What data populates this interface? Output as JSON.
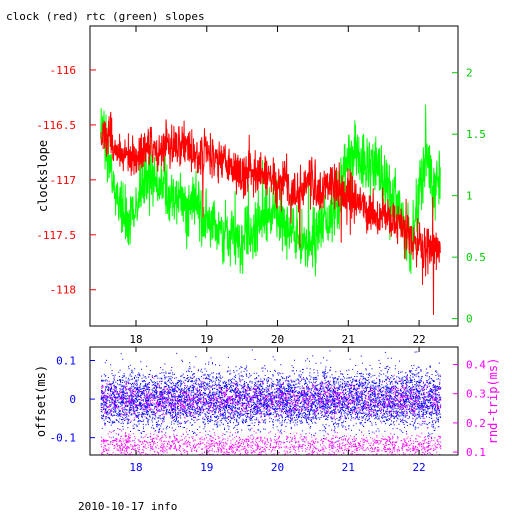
{
  "title": "clock (red) rtc (green) slopes",
  "footer": "2010-10-17 info",
  "colors": {
    "clock": "#ff0000",
    "rtc": "#00ff00",
    "offset": "#0000ff",
    "rtt": "#ff00ff",
    "top_left_axis": "#ff0000",
    "top_right_axis": "#00cc00",
    "bottom_left_axis": "#0000ff",
    "bottom_right_axis": "#ff00ff",
    "frame": "#000000"
  },
  "chart_data": [
    {
      "type": "line",
      "panel": "top",
      "title": "clock (red) rtc (green) slopes",
      "ylabel": "clockslope",
      "xlim": [
        17.35,
        22.55
      ],
      "ylim": [
        -118.33,
        -115.6
      ],
      "y2lim": [
        -0.06,
        2.38
      ],
      "x_ticks": [
        "18",
        "19",
        "20",
        "21",
        "22"
      ],
      "x_tick_values": [
        18,
        19,
        20,
        21,
        22
      ],
      "y_ticks": [
        "-116",
        "-116.5",
        "-117",
        "-117.5",
        "-118"
      ],
      "y_tick_values": [
        -116,
        -116.5,
        -117,
        -117.5,
        -118
      ],
      "y2_ticks": [
        "2",
        "1.5",
        "1",
        "0.5",
        "0"
      ],
      "y2_tick_values": [
        2,
        1.5,
        1,
        0.5,
        0
      ],
      "grid": false,
      "series": [
        {
          "name": "clock",
          "axis": "left",
          "color": "#ff0000",
          "x": [
            17.5,
            17.6,
            17.7,
            17.8,
            17.9,
            18.0,
            18.1,
            18.2,
            18.3,
            18.4,
            18.5,
            18.6,
            18.7,
            18.8,
            18.9,
            19.0,
            19.1,
            19.2,
            19.3,
            19.4,
            19.5,
            19.6,
            19.7,
            19.8,
            19.9,
            20.0,
            20.1,
            20.2,
            20.3,
            20.4,
            20.5,
            20.6,
            20.7,
            20.8,
            20.9,
            21.0,
            21.1,
            21.2,
            21.3,
            21.4,
            21.5,
            21.6,
            21.7,
            21.8,
            21.9,
            22.0,
            22.1,
            22.2,
            22.3
          ],
          "y": [
            -116.65,
            -116.55,
            -116.7,
            -116.75,
            -116.8,
            -116.8,
            -116.75,
            -116.7,
            -116.75,
            -116.7,
            -116.75,
            -116.7,
            -116.65,
            -116.75,
            -116.8,
            -116.75,
            -116.8,
            -116.85,
            -116.85,
            -116.9,
            -116.95,
            -116.9,
            -116.95,
            -117.0,
            -116.95,
            -117.1,
            -117.0,
            -117.15,
            -117.1,
            -117.0,
            -117.05,
            -117.1,
            -117.0,
            -117.05,
            -117.1,
            -117.15,
            -117.2,
            -117.25,
            -117.3,
            -117.35,
            -117.3,
            -117.35,
            -117.4,
            -117.45,
            -117.55,
            -117.6,
            -117.6,
            -117.65,
            -117.6
          ]
        },
        {
          "name": "rtc",
          "axis": "right",
          "color": "#00ff00",
          "x": [
            17.5,
            17.6,
            17.7,
            17.8,
            17.9,
            18.0,
            18.1,
            18.2,
            18.3,
            18.4,
            18.5,
            18.6,
            18.7,
            18.8,
            18.9,
            19.0,
            19.1,
            19.2,
            19.3,
            19.4,
            19.5,
            19.6,
            19.7,
            19.8,
            19.9,
            20.0,
            20.1,
            20.2,
            20.3,
            20.4,
            20.5,
            20.6,
            20.7,
            20.8,
            20.9,
            21.0,
            21.1,
            21.2,
            21.3,
            21.4,
            21.5,
            21.6,
            21.7,
            21.8,
            21.9,
            22.0,
            22.1,
            22.2,
            22.3
          ],
          "y": [
            1.6,
            1.35,
            1.05,
            0.9,
            0.8,
            0.95,
            1.1,
            1.15,
            1.1,
            1.05,
            1.0,
            0.95,
            0.9,
            0.95,
            0.85,
            0.75,
            0.8,
            0.7,
            0.65,
            0.7,
            0.65,
            0.7,
            0.75,
            0.8,
            0.85,
            0.9,
            0.75,
            0.7,
            0.65,
            0.6,
            0.65,
            0.75,
            0.8,
            0.85,
            1.1,
            1.3,
            1.35,
            1.3,
            1.25,
            1.3,
            1.1,
            1.0,
            0.9,
            0.75,
            0.6,
            0.95,
            1.35,
            1.0,
            1.15
          ]
        }
      ]
    },
    {
      "type": "scatter",
      "panel": "bottom",
      "ylabel": "offset(ms)",
      "y2label": "rnd-trip(ms)",
      "xlim": [
        17.35,
        22.55
      ],
      "ylim": [
        -0.145,
        0.135
      ],
      "y2lim": [
        0.09,
        0.46
      ],
      "x_ticks": [
        "18",
        "19",
        "20",
        "21",
        "22"
      ],
      "x_tick_values": [
        18,
        19,
        20,
        21,
        22
      ],
      "y_ticks": [
        "0.1",
        "0",
        "-0.1"
      ],
      "y_tick_values": [
        0.1,
        0,
        -0.1
      ],
      "y2_ticks": [
        "0.4",
        "0.3",
        "0.2",
        "0.1"
      ],
      "y2_tick_values": [
        0.4,
        0.3,
        0.2,
        0.1
      ],
      "grid": false,
      "series": [
        {
          "name": "offset",
          "axis": "left",
          "color": "#0000ff",
          "x_range": [
            17.5,
            22.3
          ],
          "center": 0.0,
          "spread": 0.035,
          "outlier_range": [
            -0.13,
            0.13
          ]
        },
        {
          "name": "rnd-trip",
          "axis": "right",
          "color": "#ff00ff",
          "x_range": [
            17.5,
            22.3
          ],
          "bands": [
            {
              "center": 0.125,
              "spread": 0.02
            },
            {
              "center": 0.28,
              "spread": 0.03
            }
          ]
        }
      ]
    }
  ]
}
